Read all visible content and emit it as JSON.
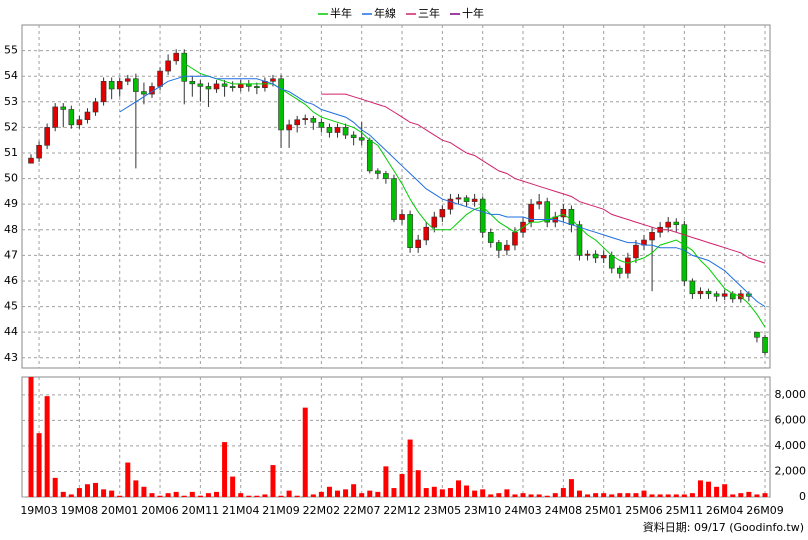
{
  "chart_data": {
    "type": "candlestick",
    "categories": [
      null,
      "19M03",
      null,
      null,
      null,
      null,
      "19M08",
      null,
      null,
      null,
      null,
      "20M01",
      null,
      null,
      null,
      null,
      "20M06",
      null,
      null,
      null,
      null,
      "20M11",
      null,
      null,
      null,
      null,
      "21M04",
      null,
      null,
      null,
      null,
      "21M09",
      null,
      null,
      null,
      null,
      "22M02",
      null,
      null,
      null,
      null,
      "22M07",
      null,
      null,
      null,
      null,
      "22M12",
      null,
      null,
      null,
      null,
      "23M05",
      null,
      null,
      null,
      null,
      "23M10",
      null,
      null,
      null,
      null,
      "24M03",
      null,
      null,
      null,
      null,
      "24M08",
      null,
      null,
      null,
      null,
      "25M01",
      null,
      null,
      null,
      null,
      "25M06",
      null,
      null,
      null,
      null,
      "25M11",
      null,
      null,
      null,
      null,
      "26M04",
      null,
      null,
      null,
      null,
      "26M09"
    ],
    "ohlc": [
      [
        50.6,
        50.95,
        50.6,
        50.8
      ],
      [
        50.8,
        51.45,
        50.65,
        51.3
      ],
      [
        51.3,
        52.15,
        51.15,
        52.0
      ],
      [
        52.0,
        52.95,
        51.85,
        52.8
      ],
      [
        52.8,
        52.95,
        52.0,
        52.7
      ],
      [
        52.7,
        52.85,
        51.95,
        52.1
      ],
      [
        52.1,
        52.45,
        51.95,
        52.3
      ],
      [
        52.3,
        52.75,
        52.15,
        52.6
      ],
      [
        52.6,
        53.15,
        52.45,
        53.0
      ],
      [
        53.0,
        53.95,
        52.85,
        53.8
      ],
      [
        53.8,
        53.95,
        53.1,
        53.5
      ],
      [
        53.5,
        53.95,
        53.2,
        53.8
      ],
      [
        53.8,
        54.05,
        53.65,
        53.9
      ],
      [
        53.9,
        54.1,
        50.4,
        53.4
      ],
      [
        53.4,
        53.75,
        52.9,
        53.3
      ],
      [
        53.3,
        53.75,
        53.15,
        53.6
      ],
      [
        53.6,
        54.35,
        53.45,
        54.2
      ],
      [
        54.2,
        54.85,
        54.05,
        54.6
      ],
      [
        54.6,
        55.05,
        54.45,
        54.9
      ],
      [
        54.9,
        55.05,
        52.9,
        53.8
      ],
      [
        53.8,
        54.0,
        53.2,
        53.7
      ],
      [
        53.7,
        53.85,
        53.0,
        53.6
      ],
      [
        53.6,
        53.75,
        52.8,
        53.5
      ],
      [
        53.5,
        53.85,
        53.35,
        53.7
      ],
      [
        53.7,
        53.85,
        53.2,
        53.6
      ],
      [
        53.6,
        53.8,
        53.4,
        53.55
      ],
      [
        53.55,
        53.85,
        53.4,
        53.7
      ],
      [
        53.7,
        53.85,
        53.4,
        53.6
      ],
      [
        53.6,
        53.75,
        53.3,
        53.55
      ],
      [
        53.55,
        53.95,
        53.4,
        53.8
      ],
      [
        53.8,
        54.05,
        53.6,
        53.9
      ],
      [
        53.9,
        54.05,
        51.2,
        51.9
      ],
      [
        51.9,
        52.3,
        51.2,
        52.1
      ],
      [
        52.1,
        52.45,
        51.8,
        52.3
      ],
      [
        52.3,
        52.5,
        52.1,
        52.35
      ],
      [
        52.35,
        52.45,
        51.9,
        52.2
      ],
      [
        52.2,
        52.35,
        51.8,
        52.0
      ],
      [
        52.0,
        52.15,
        51.6,
        51.8
      ],
      [
        51.8,
        52.15,
        51.6,
        52.0
      ],
      [
        52.0,
        52.15,
        51.55,
        51.7
      ],
      [
        51.7,
        51.85,
        51.3,
        51.6
      ],
      [
        51.6,
        52.2,
        51.3,
        51.5
      ],
      [
        51.5,
        51.6,
        50.2,
        50.3
      ],
      [
        50.3,
        50.4,
        50.0,
        50.2
      ],
      [
        50.2,
        50.3,
        49.8,
        50.0
      ],
      [
        50.0,
        50.15,
        48.3,
        48.4
      ],
      [
        48.4,
        48.8,
        48.2,
        48.6
      ],
      [
        48.6,
        48.75,
        47.1,
        47.3
      ],
      [
        47.3,
        47.8,
        47.1,
        47.6
      ],
      [
        47.6,
        48.3,
        47.4,
        48.1
      ],
      [
        48.1,
        48.7,
        47.9,
        48.5
      ],
      [
        48.5,
        48.95,
        48.3,
        48.8
      ],
      [
        48.8,
        49.4,
        48.6,
        49.2
      ],
      [
        49.2,
        49.4,
        49.0,
        49.25
      ],
      [
        49.25,
        49.35,
        48.9,
        49.1
      ],
      [
        49.1,
        49.4,
        48.9,
        49.2
      ],
      [
        49.2,
        49.3,
        47.7,
        47.9
      ],
      [
        47.9,
        48.05,
        47.3,
        47.5
      ],
      [
        47.5,
        47.6,
        46.9,
        47.2
      ],
      [
        47.2,
        47.6,
        47.0,
        47.4
      ],
      [
        47.4,
        48.1,
        47.2,
        47.9
      ],
      [
        47.9,
        48.5,
        47.7,
        48.3
      ],
      [
        48.3,
        49.2,
        48.1,
        49.0
      ],
      [
        49.0,
        49.4,
        48.8,
        49.1
      ],
      [
        49.1,
        49.25,
        48.1,
        48.3
      ],
      [
        48.3,
        48.7,
        48.1,
        48.5
      ],
      [
        48.5,
        49.0,
        48.3,
        48.8
      ],
      [
        48.8,
        48.95,
        47.9,
        48.2
      ],
      [
        48.2,
        48.35,
        46.8,
        47.0
      ],
      [
        47.0,
        47.2,
        46.8,
        47.05
      ],
      [
        47.05,
        47.2,
        46.7,
        46.9
      ],
      [
        46.9,
        47.2,
        46.7,
        47.0
      ],
      [
        47.0,
        47.15,
        46.3,
        46.5
      ],
      [
        46.5,
        46.6,
        46.1,
        46.3
      ],
      [
        46.3,
        47.1,
        46.1,
        46.9
      ],
      [
        46.9,
        47.6,
        46.7,
        47.4
      ],
      [
        47.4,
        47.8,
        47.2,
        47.6
      ],
      [
        47.6,
        48.1,
        45.6,
        47.9
      ],
      [
        47.9,
        48.3,
        47.7,
        48.1
      ],
      [
        48.1,
        48.5,
        47.9,
        48.3
      ],
      [
        48.3,
        48.45,
        47.9,
        48.2
      ],
      [
        48.2,
        48.35,
        45.8,
        46.0
      ],
      [
        46.0,
        46.1,
        45.3,
        45.5
      ],
      [
        45.5,
        45.75,
        45.3,
        45.6
      ],
      [
        45.6,
        45.7,
        45.3,
        45.5
      ],
      [
        45.5,
        45.6,
        45.2,
        45.4
      ],
      [
        45.4,
        45.65,
        45.25,
        45.5
      ],
      [
        45.5,
        45.6,
        45.15,
        45.3
      ],
      [
        45.3,
        45.65,
        45.15,
        45.5
      ],
      [
        45.5,
        45.6,
        45.2,
        45.4
      ],
      [
        44.0,
        44.0,
        43.6,
        43.8
      ],
      [
        43.8,
        43.9,
        43.1,
        43.2
      ]
    ],
    "up_color": "#e00000",
    "down_color": "#00c000",
    "series": [
      {
        "name": "半年",
        "color": "#00cc00",
        "values": [
          null,
          null,
          null,
          null,
          null,
          null,
          null,
          null,
          null,
          null,
          null,
          null,
          null,
          null,
          null,
          null,
          null,
          null,
          null,
          54.5,
          54.3,
          54.1,
          54.0,
          53.9,
          53.8,
          53.7,
          53.7,
          53.7,
          53.7,
          53.7,
          53.7,
          53.5,
          53.3,
          53.1,
          52.9,
          52.6,
          52.4,
          52.3,
          52.2,
          52.1,
          52.0,
          51.8,
          51.5,
          51.3,
          50.8,
          50.3,
          49.8,
          49.2,
          48.7,
          48.3,
          48.0,
          48.0,
          48.0,
          48.3,
          48.6,
          48.8,
          48.9,
          48.6,
          48.3,
          48.1,
          47.9,
          48.1,
          48.3,
          48.3,
          48.4,
          48.5,
          48.6,
          48.4,
          48.1,
          47.8,
          47.6,
          47.3,
          47.0,
          46.8,
          46.7,
          46.8,
          46.9,
          47.1,
          47.4,
          47.5,
          47.6,
          47.4,
          47.2,
          46.8,
          46.5,
          46.1,
          45.7,
          45.5,
          45.4,
          45.1,
          44.7,
          44.2
        ]
      },
      {
        "name": "年線",
        "color": "#1e6fe0",
        "values": [
          null,
          null,
          null,
          null,
          null,
          null,
          null,
          null,
          null,
          null,
          null,
          52.6,
          52.8,
          53.0,
          53.2,
          53.4,
          53.6,
          53.8,
          53.9,
          54.0,
          54.0,
          54.0,
          54.0,
          53.9,
          53.9,
          53.9,
          53.9,
          53.9,
          53.9,
          53.8,
          53.7,
          53.5,
          53.4,
          53.2,
          53.0,
          52.9,
          52.7,
          52.6,
          52.5,
          52.4,
          52.2,
          51.9,
          51.7,
          51.4,
          51.1,
          50.8,
          50.5,
          50.2,
          49.9,
          49.6,
          49.4,
          49.2,
          49.1,
          49.0,
          48.9,
          48.8,
          48.7,
          48.6,
          48.6,
          48.5,
          48.5,
          48.5,
          48.4,
          48.4,
          48.4,
          48.4,
          48.3,
          48.2,
          48.1,
          48.0,
          47.9,
          47.8,
          47.7,
          47.6,
          47.5,
          47.5,
          47.4,
          47.4,
          47.3,
          47.3,
          47.3,
          47.2,
          47.0,
          46.9,
          46.8,
          46.6,
          46.4,
          46.1,
          45.8,
          45.5,
          45.2,
          45.0
        ]
      },
      {
        "name": "三年",
        "color": "#d0206a",
        "values": [
          null,
          null,
          null,
          null,
          null,
          null,
          null,
          null,
          null,
          null,
          null,
          null,
          null,
          null,
          null,
          null,
          null,
          null,
          null,
          null,
          null,
          null,
          null,
          null,
          null,
          null,
          null,
          null,
          null,
          null,
          null,
          null,
          null,
          null,
          null,
          null,
          53.3,
          53.3,
          53.3,
          53.3,
          53.2,
          53.1,
          53.0,
          52.9,
          52.8,
          52.6,
          52.4,
          52.2,
          52.1,
          51.9,
          51.7,
          51.5,
          51.4,
          51.2,
          51.0,
          50.9,
          50.7,
          50.5,
          50.3,
          50.2,
          50.0,
          49.9,
          49.8,
          49.7,
          49.6,
          49.5,
          49.4,
          49.3,
          49.1,
          49.0,
          48.9,
          48.8,
          48.6,
          48.5,
          48.4,
          48.3,
          48.2,
          48.1,
          48.0,
          48.0,
          47.9,
          47.8,
          47.7,
          47.6,
          47.5,
          47.4,
          47.3,
          47.2,
          47.1,
          46.9,
          46.8,
          46.7
        ]
      },
      {
        "name": "十年",
        "color": "#800080",
        "values": [
          null,
          null,
          null,
          null,
          null,
          null,
          null,
          null,
          null,
          null,
          null,
          null,
          null,
          null,
          null,
          null,
          null,
          null,
          null,
          null,
          null,
          null,
          null,
          null,
          null,
          null,
          null,
          null,
          null,
          null,
          null,
          null,
          null,
          null,
          null,
          null,
          null,
          null,
          null,
          null,
          null,
          null,
          null,
          null,
          null,
          null,
          null,
          null,
          null,
          null,
          null,
          null,
          null,
          null,
          null,
          null,
          null,
          null,
          null,
          null,
          null,
          null,
          null,
          null,
          null,
          null,
          null,
          null,
          null,
          null,
          null,
          null,
          null,
          null,
          null,
          null,
          null,
          null,
          null,
          null,
          null,
          null,
          null,
          null,
          null,
          null,
          null,
          null,
          null,
          null,
          null,
          null
        ]
      }
    ],
    "ylim": [
      42.6,
      56
    ],
    "yticks": [
      43,
      44,
      45,
      46,
      47,
      48,
      49,
      50,
      51,
      52,
      53,
      54,
      55
    ],
    "volume": {
      "color": "#ff0000",
      "values": [
        9400,
        5000,
        7900,
        1500,
        400,
        200,
        700,
        1000,
        1100,
        600,
        500,
        100,
        2700,
        1300,
        800,
        300,
        100,
        300,
        400,
        100,
        400,
        100,
        300,
        400,
        4300,
        1600,
        300,
        100,
        100,
        200,
        2500,
        100,
        500,
        100,
        7000,
        200,
        400,
        800,
        500,
        600,
        1000,
        300,
        500,
        400,
        2400,
        700,
        1800,
        4500,
        2100,
        700,
        800,
        600,
        700,
        1300,
        900,
        500,
        600,
        200,
        300,
        600,
        200,
        300,
        200,
        200,
        100,
        300,
        700,
        1400,
        500,
        200,
        300,
        300,
        200,
        300,
        300,
        300,
        500,
        200,
        200,
        200,
        200,
        200,
        300,
        1300,
        1200,
        800,
        1000,
        200,
        300,
        400,
        200,
        300
      ],
      "ylim": [
        0,
        9400
      ],
      "yticks": [
        0,
        {
          "value": 2000,
          "label": "2,000"
        },
        {
          "value": 4000,
          "label": "4,000"
        },
        {
          "value": 6000,
          "label": "6,000"
        },
        {
          "value": 8000,
          "label": "8,000"
        }
      ]
    },
    "grid": true,
    "footnote": "資料日期: 09/17 (Goodinfo.tw)"
  }
}
